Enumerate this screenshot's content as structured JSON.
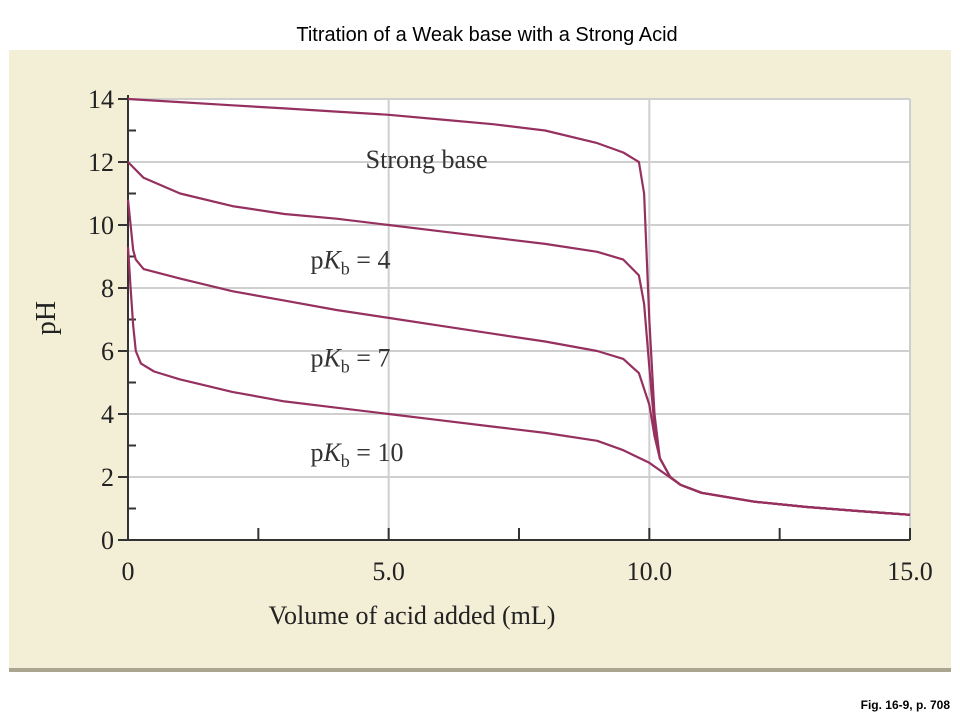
{
  "slide": {
    "title": "Titration of a Weak base with a Strong Acid",
    "caption": "Fig. 16-9, p. 708"
  },
  "colors": {
    "curve": "#95305f",
    "background": "#f3efd6",
    "grid": "#cfcfcf"
  },
  "chart_data": {
    "type": "line",
    "title": "",
    "xlabel": "Volume of acid added (mL)",
    "ylabel": "pH",
    "xlim": [
      0,
      15
    ],
    "ylim": [
      0,
      14
    ],
    "x_ticks": [
      "0",
      "5.0",
      "10.0",
      "15.0"
    ],
    "y_ticks": [
      "0",
      "2",
      "4",
      "6",
      "8",
      "10",
      "12",
      "14"
    ],
    "grid": true,
    "series": [
      {
        "name": "Strong base",
        "label_prefix": "",
        "label_sub": "",
        "label_value": "",
        "x": [
          0,
          1,
          2,
          3,
          4,
          5,
          6,
          7,
          8,
          9,
          9.5,
          9.8,
          9.9,
          10.0,
          10.1,
          10.2,
          10.4,
          10.6,
          11,
          12,
          13,
          14,
          15
        ],
        "y": [
          14.0,
          13.9,
          13.8,
          13.7,
          13.6,
          13.5,
          13.35,
          13.2,
          13.0,
          12.6,
          12.3,
          12.0,
          11.0,
          7.0,
          4.0,
          2.6,
          2.0,
          1.75,
          1.5,
          1.22,
          1.05,
          0.92,
          0.8
        ]
      },
      {
        "name": "",
        "label_prefix": "p",
        "label_sub": "b",
        "label_value": "= 4",
        "x": [
          0,
          0.3,
          1,
          2,
          3,
          4,
          5,
          6,
          7,
          8,
          9,
          9.5,
          9.8,
          9.9,
          10.0,
          10.1,
          10.2,
          10.4,
          10.6,
          11,
          12,
          13,
          14,
          15
        ],
        "y": [
          12.0,
          11.5,
          11.0,
          10.6,
          10.35,
          10.2,
          10.0,
          9.8,
          9.6,
          9.4,
          9.15,
          8.9,
          8.4,
          7.5,
          5.5,
          3.6,
          2.6,
          2.0,
          1.75,
          1.5,
          1.22,
          1.05,
          0.92,
          0.8
        ]
      },
      {
        "name": "",
        "label_prefix": "p",
        "label_sub": "b",
        "label_value": "= 7",
        "x": [
          0,
          0.05,
          0.1,
          0.15,
          0.3,
          1,
          2,
          3,
          4,
          5,
          6,
          7,
          8,
          9,
          9.5,
          9.8,
          10.0,
          10.1,
          10.2,
          10.4,
          10.6,
          11,
          12,
          13,
          14,
          15
        ],
        "y": [
          10.8,
          10.0,
          9.2,
          8.9,
          8.6,
          8.3,
          7.9,
          7.6,
          7.3,
          7.05,
          6.8,
          6.55,
          6.3,
          6.0,
          5.75,
          5.3,
          4.3,
          3.3,
          2.6,
          2.0,
          1.75,
          1.5,
          1.22,
          1.05,
          0.92,
          0.8
        ]
      },
      {
        "name": "",
        "label_prefix": "p",
        "label_sub": "b",
        "label_value": "= 10",
        "x": [
          0,
          0.05,
          0.1,
          0.15,
          0.25,
          0.5,
          1,
          2,
          3,
          4,
          5,
          6,
          7,
          8,
          9,
          9.5,
          10.0,
          10.3,
          10.6,
          11,
          12,
          13,
          14,
          15
        ],
        "y": [
          9.3,
          8.0,
          6.8,
          6.0,
          5.6,
          5.35,
          5.1,
          4.7,
          4.4,
          4.2,
          4.0,
          3.8,
          3.6,
          3.4,
          3.15,
          2.85,
          2.45,
          2.1,
          1.75,
          1.5,
          1.22,
          1.05,
          0.92,
          0.8
        ]
      }
    ]
  }
}
